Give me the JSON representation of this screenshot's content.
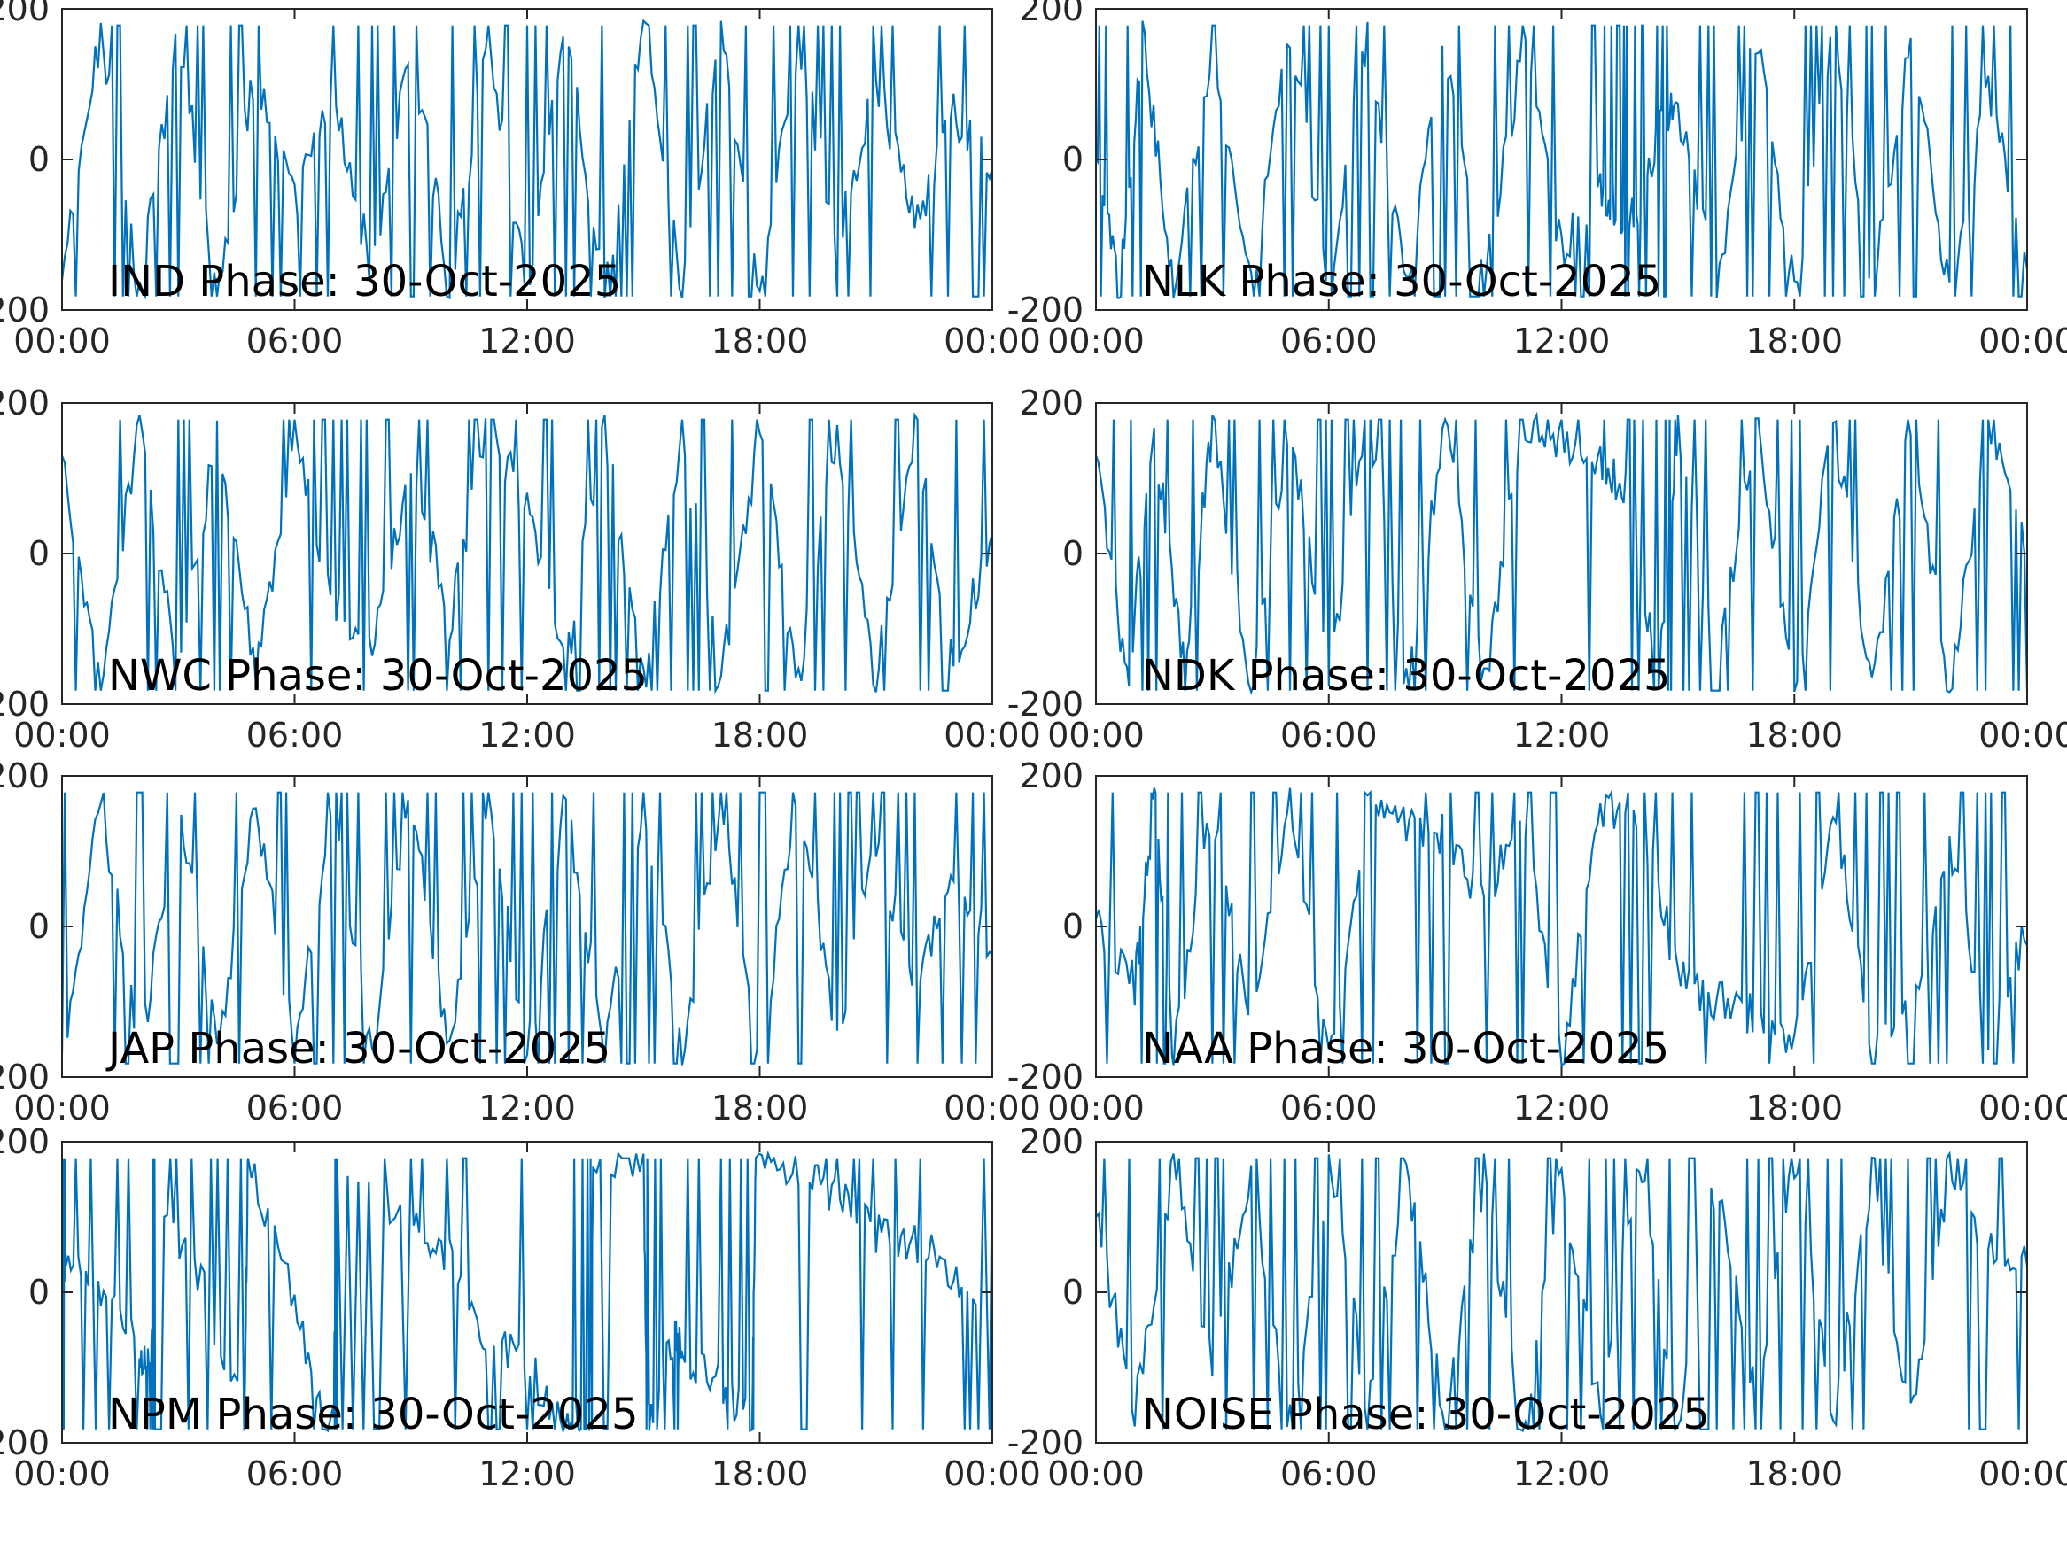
{
  "figure": {
    "line_color": "#0072BD",
    "axes_color": "#262626",
    "background": "#ffffff"
  },
  "chart_data": [
    {
      "type": "line",
      "annotation": "IND Phase: 30-Oct-2025",
      "x_tick_labels": [
        "00:00",
        "06:00",
        "12:00",
        "18:00",
        "00:00"
      ],
      "y_tick_labels": [
        "-200",
        "0",
        "200"
      ],
      "xlim": [
        "00:00",
        "24:00"
      ],
      "ylim": [
        -200,
        200
      ],
      "grid": false,
      "series": [
        {
          "x_hours": [
            0,
            1,
            2,
            3,
            4,
            5,
            6,
            7,
            8,
            9,
            10,
            11,
            12,
            13,
            14,
            15,
            16,
            17,
            18,
            19,
            20,
            21,
            22,
            23,
            24
          ],
          "values": [
            -160,
            170,
            -175,
            165,
            -170,
            120,
            -60,
            80,
            -150,
            160,
            -165,
            150,
            -170,
            175,
            -180,
            180,
            -180,
            178,
            -175,
            160,
            -120,
            110,
            -90,
            60,
            -20
          ]
        }
      ]
    },
    {
      "type": "line",
      "annotation": "NLK Phase: 30-Oct-2025",
      "x_tick_labels": [
        "00:00",
        "06:00",
        "12:00",
        "18:00",
        "00:00"
      ],
      "y_tick_labels": [
        "-200",
        "0",
        "200"
      ],
      "xlim": [
        "00:00",
        "24:00"
      ],
      "ylim": [
        -200,
        200
      ],
      "grid": false,
      "series": [
        {
          "x_hours": [
            0,
            0.6,
            1.2,
            2,
            3,
            4,
            5,
            6,
            7,
            8,
            9,
            10,
            11,
            12,
            13,
            13.5,
            14,
            14.5,
            15,
            16,
            17,
            18,
            19,
            20,
            21,
            22,
            23,
            24
          ],
          "values": [
            0,
            -180,
            170,
            -170,
            160,
            -175,
            165,
            -160,
            170,
            -170,
            160,
            -170,
            150,
            -120,
            -40,
            -70,
            -60,
            40,
            70,
            -175,
            170,
            -180,
            175,
            -170,
            160,
            -180,
            90,
            -130
          ]
        }
      ]
    },
    {
      "type": "line",
      "annotation": "NWC Phase: 30-Oct-2025",
      "x_tick_labels": [
        "00:00",
        "06:00",
        "12:00",
        "18:00",
        "00:00"
      ],
      "y_tick_labels": [
        "-200",
        "0",
        "200"
      ],
      "xlim": [
        "00:00",
        "24:00"
      ],
      "ylim": [
        -200,
        200
      ],
      "grid": false,
      "series": [
        {
          "x_hours": [
            0,
            1,
            2,
            3,
            4,
            5,
            6,
            7,
            8,
            9,
            10,
            11,
            12,
            13,
            14,
            15,
            16,
            17,
            18,
            19,
            20,
            21,
            22,
            23,
            24
          ],
          "values": [
            130,
            -170,
            175,
            -165,
            160,
            -170,
            150,
            -60,
            -140,
            120,
            -90,
            170,
            60,
            -150,
            170,
            -175,
            160,
            -170,
            165,
            -175,
            170,
            -170,
            175,
            -160,
            40
          ]
        }
      ]
    },
    {
      "type": "line",
      "annotation": "NDK Phase: 30-Oct-2025",
      "x_tick_labels": [
        "00:00",
        "06:00",
        "12:00",
        "18:00",
        "00:00"
      ],
      "y_tick_labels": [
        "-200",
        "0",
        "200"
      ],
      "xlim": [
        "00:00",
        "24:00"
      ],
      "ylim": [
        -200,
        200
      ],
      "grid": false,
      "series": [
        {
          "x_hours": [
            0,
            0.8,
            1.5,
            2.3,
            3,
            4,
            5,
            6,
            7,
            8,
            9,
            10,
            11,
            12,
            13,
            13.7,
            14.5,
            15,
            16,
            17,
            18,
            19,
            20,
            21,
            22,
            23,
            24
          ],
          "values": [
            130,
            -175,
            170,
            -170,
            175,
            -175,
            170,
            -170,
            175,
            -170,
            165,
            -180,
            175,
            140,
            120,
            80,
            -180,
            170,
            -170,
            175,
            -180,
            175,
            -175,
            170,
            -180,
            175,
            0
          ]
        }
      ]
    },
    {
      "type": "line",
      "annotation": "JAP Phase: 30-Oct-2025",
      "x_tick_labels": [
        "00:00",
        "06:00",
        "12:00",
        "18:00",
        "00:00"
      ],
      "y_tick_labels": [
        "-200",
        "0",
        "200"
      ],
      "xlim": [
        "00:00",
        "24:00"
      ],
      "ylim": [
        -200,
        200
      ],
      "grid": false,
      "series": [
        {
          "x_hours": [
            0,
            1,
            2,
            3,
            4,
            5,
            6,
            7,
            8,
            9,
            10,
            11,
            12,
            13,
            14,
            15,
            16,
            17,
            18,
            19,
            20,
            21,
            22,
            23,
            24
          ],
          "values": [
            -170,
            175,
            -178,
            172,
            -170,
            168,
            -175,
            170,
            -168,
            175,
            -172,
            170,
            -175,
            172,
            -170,
            175,
            -168,
            170,
            -172,
            175,
            -160,
            120,
            -80,
            60,
            -30
          ]
        }
      ]
    },
    {
      "type": "line",
      "annotation": "NAA Phase: 30-Oct-2025",
      "x_tick_labels": [
        "00:00",
        "06:00",
        "12:00",
        "18:00",
        "00:00"
      ],
      "y_tick_labels": [
        "-200",
        "0",
        "200"
      ],
      "xlim": [
        "00:00",
        "24:00"
      ],
      "ylim": [
        -200,
        200
      ],
      "grid": false,
      "series": [
        {
          "x_hours": [
            0,
            1,
            1.5,
            2,
            3,
            4,
            5,
            6,
            7,
            8,
            9,
            10,
            11,
            12,
            13,
            14,
            15,
            16,
            17,
            18,
            19,
            20,
            21,
            22,
            23,
            24
          ],
          "values": [
            10,
            -80,
            175,
            -175,
            160,
            -150,
            175,
            -175,
            150,
            140,
            120,
            30,
            150,
            -175,
            160,
            150,
            -60,
            -100,
            -120,
            -170,
            175,
            -150,
            -100,
            100,
            -150,
            0
          ]
        }
      ]
    },
    {
      "type": "line",
      "annotation": "NPM Phase: 30-Oct-2025",
      "x_tick_labels": [
        "00:00",
        "06:00",
        "12:00",
        "18:00",
        "00:00"
      ],
      "y_tick_labels": [
        "-200",
        "0",
        "200"
      ],
      "xlim": [
        "00:00",
        "24:00"
      ],
      "ylim": [
        -200,
        200
      ],
      "grid": false,
      "series": [
        {
          "x_hours": [
            0,
            0.1,
            1,
            2,
            2.3,
            2.4,
            3.5,
            4.7,
            4.8,
            6,
            7,
            7.1,
            9,
            10,
            11,
            12,
            13,
            13.6,
            13.7,
            15,
            15.1,
            15.8,
            16,
            17,
            17.8,
            17.9,
            19,
            20,
            21,
            22,
            23,
            24
          ],
          "values": [
            20,
            40,
            0,
            -80,
            -90,
            90,
            30,
            -170,
            180,
            -20,
            -180,
            180,
            90,
            40,
            -60,
            -100,
            -170,
            -175,
            170,
            170,
            -175,
            -50,
            -90,
            -120,
            -180,
            180,
            170,
            130,
            80,
            70,
            30,
            -30
          ]
        }
      ]
    },
    {
      "type": "line",
      "annotation": "NOISE Phase: 30-Oct-2025",
      "x_tick_labels": [
        "00:00",
        "06:00",
        "12:00",
        "18:00",
        "00:00"
      ],
      "y_tick_labels": [
        "-200",
        "0",
        "200"
      ],
      "xlim": [
        "00:00",
        "24:00"
      ],
      "ylim": [
        -200,
        200
      ],
      "grid": false,
      "series": [
        {
          "x_hours": [
            0,
            1,
            2,
            3,
            4,
            5,
            6,
            7,
            8,
            9,
            10,
            11,
            12,
            13,
            14,
            15,
            16,
            17,
            18,
            19,
            20,
            21,
            22,
            23,
            24
          ],
          "values": [
            100,
            -160,
            170,
            -100,
            160,
            -175,
            170,
            -150,
            165,
            -170,
            160,
            -175,
            150,
            -165,
            170,
            -170,
            160,
            -150,
            175,
            -170,
            160,
            -175,
            165,
            60,
            40
          ]
        }
      ]
    }
  ]
}
